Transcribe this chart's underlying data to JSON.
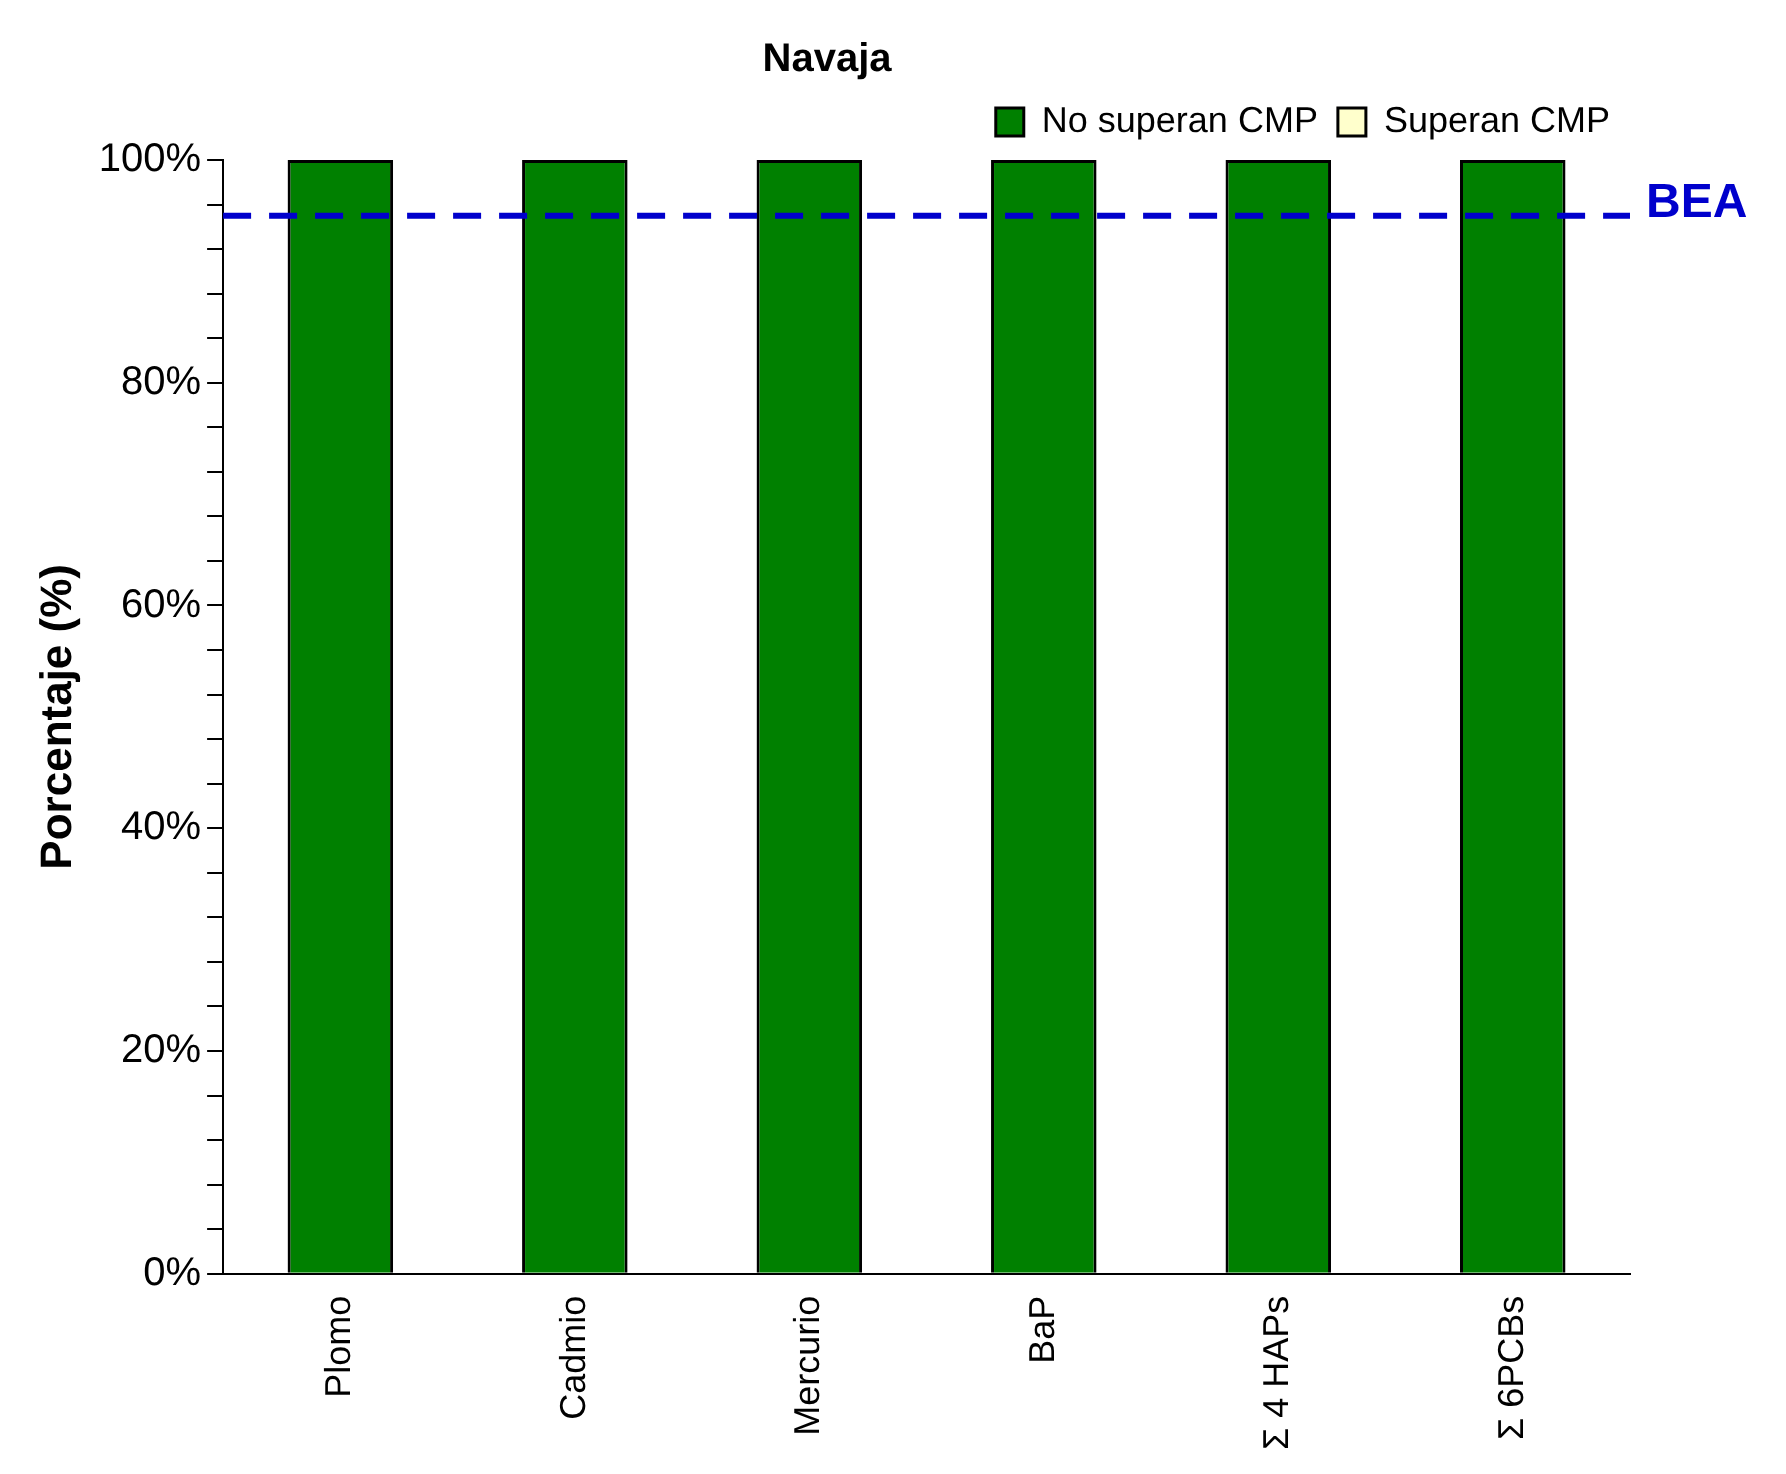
{
  "chart_data": {
    "type": "bar",
    "title": "Navaja",
    "ylabel": "Porcentaje (%)",
    "categories": [
      "Plomo",
      "Cadmio",
      "Mercurio",
      "BaP",
      "Σ 4 HAPs",
      "Σ 6PCBs"
    ],
    "series": [
      {
        "name": "No superan CMP",
        "color": "#008000",
        "values": [
          100,
          100,
          100,
          100,
          100,
          100
        ]
      },
      {
        "name": "Superan CMP",
        "color": "#ffffcc",
        "values": [
          0,
          0,
          0,
          0,
          0,
          0
        ]
      }
    ],
    "stacked": true,
    "ylim": [
      0,
      100
    ],
    "yticks": [
      {
        "value": 0,
        "label": "0%"
      },
      {
        "value": 4,
        "label": null
      },
      {
        "value": 8,
        "label": null
      },
      {
        "value": 12,
        "label": null
      },
      {
        "value": 16,
        "label": null
      },
      {
        "value": 20,
        "label": "20%"
      },
      {
        "value": 24,
        "label": null
      },
      {
        "value": 28,
        "label": null
      },
      {
        "value": 32,
        "label": null
      },
      {
        "value": 36,
        "label": null
      },
      {
        "value": 40,
        "label": "40%"
      },
      {
        "value": 44,
        "label": null
      },
      {
        "value": 48,
        "label": null
      },
      {
        "value": 52,
        "label": null
      },
      {
        "value": 56,
        "label": null
      },
      {
        "value": 60,
        "label": "60%"
      },
      {
        "value": 64,
        "label": null
      },
      {
        "value": 68,
        "label": null
      },
      {
        "value": 72,
        "label": null
      },
      {
        "value": 76,
        "label": null
      },
      {
        "value": 80,
        "label": "80%"
      },
      {
        "value": 84,
        "label": null
      },
      {
        "value": 88,
        "label": null
      },
      {
        "value": 92,
        "label": null
      },
      {
        "value": 96,
        "label": null
      },
      {
        "value": 100,
        "label": "100%"
      }
    ],
    "ref_lines": [
      {
        "axis": "y",
        "value": 95,
        "label": "BEA",
        "color": "#0000cc",
        "line_style": "dashed"
      }
    ],
    "grid": false,
    "legend": "top right"
  }
}
